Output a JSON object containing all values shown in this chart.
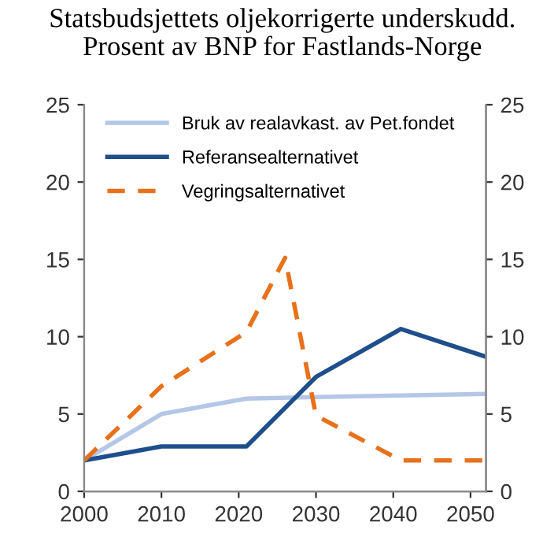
{
  "chart_data": {
    "type": "line",
    "title": "Statsbudsjettets oljekorrigerte underskudd.\nProsent av BNP for Fastlands-Norge",
    "xlim": [
      2000,
      2052
    ],
    "xticks": [
      2000,
      2010,
      2020,
      2030,
      2040,
      2050
    ],
    "ylim": [
      0,
      25
    ],
    "yticks": [
      0,
      5,
      10,
      15,
      20,
      25
    ],
    "y2lim": [
      0,
      25
    ],
    "y2ticks": [
      0,
      5,
      10,
      15,
      20,
      25
    ],
    "grid": false,
    "legend": "top left",
    "marker": "none",
    "series": [
      {
        "name": "Bruk av realavkast. av Pet.fondet",
        "color": "#b4c7e7",
        "line_style": "solid",
        "x": [
          2000,
          2010,
          2021,
          2030,
          2041,
          2052
        ],
        "values": [
          2,
          5.0,
          6.0,
          6.1,
          6.2,
          6.3
        ]
      },
      {
        "name": "Referansealternativet",
        "color": "#1f4e8c",
        "line_style": "solid",
        "x": [
          2000,
          2010,
          2021,
          2030,
          2041,
          2052
        ],
        "values": [
          2,
          2.9,
          2.9,
          7.4,
          10.5,
          8.7
        ]
      },
      {
        "name": "Vegringsalternativet",
        "color": "#e8711c",
        "line_style": "dashed",
        "x": [
          2000,
          2010,
          2021,
          2026,
          2030,
          2041,
          2052
        ],
        "values": [
          2,
          6.8,
          10.3,
          15.1,
          4.9,
          2.0,
          2.0
        ]
      }
    ]
  }
}
